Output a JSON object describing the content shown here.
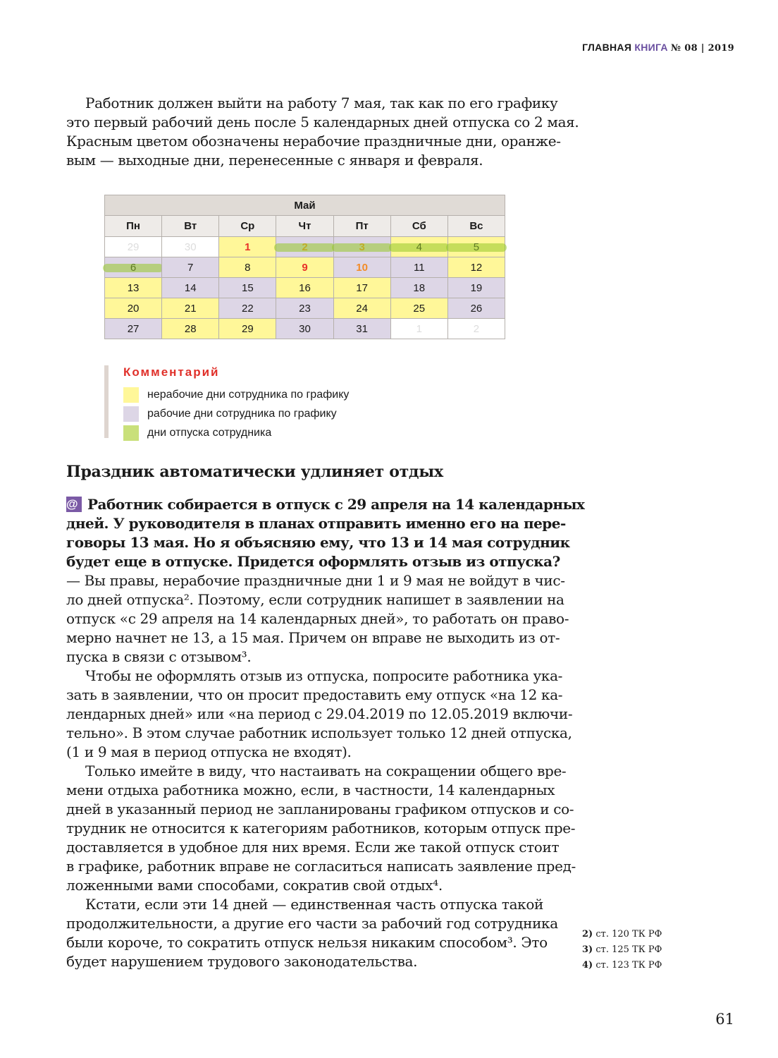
{
  "header": {
    "brand": "ГЛАВНАЯ",
    "brand_accent": "КНИГА",
    "issue": "№ 08 | 2019"
  },
  "intro": [
    "Работник должен выйти на работу 7 мая, так как по его графику",
    "это первый рабочий день после 5 календарных дней отпуска со 2 мая.",
    "Красным цветом обозначены нерабочие праздничные дни, оранже-",
    "вым — выходные дни, перенесенные с января и февраля."
  ],
  "calendar": {
    "month": "Май",
    "weekdays": [
      "Пн",
      "Вт",
      "Ср",
      "Чт",
      "Пт",
      "Сб",
      "Вс"
    ],
    "rows": [
      [
        {
          "d": "29",
          "t": "other",
          "c": "grey"
        },
        {
          "d": "30",
          "t": "other",
          "c": "grey"
        },
        {
          "d": "1",
          "t": "nonwork",
          "c": "red"
        },
        {
          "d": "2",
          "t": "work",
          "c": "orange",
          "v": true
        },
        {
          "d": "3",
          "t": "work",
          "c": "orange",
          "v": true
        },
        {
          "d": "4",
          "t": "nonwork",
          "v": true
        },
        {
          "d": "5",
          "t": "nonwork",
          "v": true
        }
      ],
      [
        {
          "d": "6",
          "t": "work",
          "v": true
        },
        {
          "d": "7",
          "t": "work"
        },
        {
          "d": "8",
          "t": "nonwork"
        },
        {
          "d": "9",
          "t": "nonwork",
          "c": "red"
        },
        {
          "d": "10",
          "t": "work",
          "c": "orange"
        },
        {
          "d": "11",
          "t": "work"
        },
        {
          "d": "12",
          "t": "nonwork"
        }
      ],
      [
        {
          "d": "13",
          "t": "nonwork"
        },
        {
          "d": "14",
          "t": "work"
        },
        {
          "d": "15",
          "t": "work"
        },
        {
          "d": "16",
          "t": "nonwork"
        },
        {
          "d": "17",
          "t": "nonwork"
        },
        {
          "d": "18",
          "t": "work"
        },
        {
          "d": "19",
          "t": "work"
        }
      ],
      [
        {
          "d": "20",
          "t": "nonwork"
        },
        {
          "d": "21",
          "t": "nonwork"
        },
        {
          "d": "22",
          "t": "work"
        },
        {
          "d": "23",
          "t": "work"
        },
        {
          "d": "24",
          "t": "nonwork"
        },
        {
          "d": "25",
          "t": "nonwork"
        },
        {
          "d": "26",
          "t": "work"
        }
      ],
      [
        {
          "d": "27",
          "t": "work"
        },
        {
          "d": "28",
          "t": "nonwork"
        },
        {
          "d": "29",
          "t": "nonwork"
        },
        {
          "d": "30",
          "t": "work"
        },
        {
          "d": "31",
          "t": "work"
        },
        {
          "d": "1",
          "t": "other",
          "c": "grey"
        },
        {
          "d": "2",
          "t": "other",
          "c": "grey"
        }
      ]
    ]
  },
  "legend": {
    "title": "Комментарий",
    "items": [
      {
        "label": "нерабочие дни сотрудника по графику",
        "color": "#fff799"
      },
      {
        "label": "рабочие дни сотрудника по графику",
        "color": "#ddd6e6"
      },
      {
        "label": "дни отпуска сотрудника",
        "color": "#c9e07a"
      }
    ]
  },
  "section_title": "Праздник автоматически удлиняет отдых",
  "question": {
    "icon": "@",
    "lines": [
      "Работник собирается в отпуск с 29 апреля на 14 календарных",
      "дней. У руководителя в планах отправить именно его на пере-",
      "говоры 13 мая. Но я объясняю ему, что 13 и 14 мая сотрудник",
      "будет еще в отпуске. Придется оформлять отзыв из отпуска?"
    ]
  },
  "answer": [
    [
      "— Вы правы, нерабочие праздничные дни 1 и 9 мая не войдут в чис-",
      "ло дней отпуска². Поэтому, если сотрудник напишет в заявлении на",
      "отпуск «с 29 апреля на 14 календарных дней», то работать он право-",
      "мерно начнет не 13, а 15 мая. Причем он вправе не выходить из от-",
      "пуска в связи с отзывом³."
    ],
    [
      "Чтобы не оформлять отзыв из отпуска, попросите работника ука-",
      "зать в заявлении, что он просит предоставить ему отпуск «на 12 ка-",
      "лендарных дней» или «на период с 29.04.2019 по 12.05.2019 включи-",
      "тельно». В этом случае работник использует только 12 дней отпуска,",
      "(1 и 9 мая в период отпуска не входят)."
    ],
    [
      "Только имейте в виду, что настаивать на сокращении общего вре-",
      "мени отдыха работника можно, если, в частности, 14 календарных",
      "дней в указанный период не запланированы графиком отпусков и со-",
      "трудник не относится к категориям работников, которым отпуск пре-",
      "доставляется в удобное для них время. Если же такой отпуск стоит",
      "в графике, работник вправе не согласиться написать заявление пред-",
      "ложенными вами способами, сократив свой отдых⁴."
    ],
    [
      "Кстати, если эти 14 дней — единственная часть отпуска такой",
      "продолжительности, а другие его части за рабочий год сотрудника",
      "были короче, то сократить отпуск нельзя никаким способом³. Это",
      "будет нарушением трудового законодательства."
    ]
  ],
  "footnotes": [
    {
      "num": "2)",
      "text": "ст. 120 ТК РФ"
    },
    {
      "num": "3)",
      "text": "ст. 125 ТК РФ"
    },
    {
      "num": "4)",
      "text": "ст. 123 ТК РФ"
    }
  ],
  "page_number": "61"
}
